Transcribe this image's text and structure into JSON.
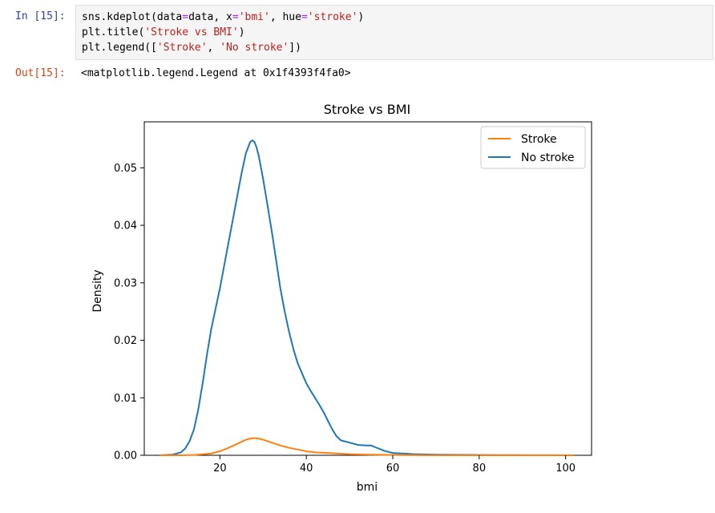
{
  "cell": {
    "in_prompt": "In [15]:",
    "out_prompt": "Out[15]:",
    "code": [
      [
        {
          "t": "sns.kdeplot(data"
        },
        {
          "t": "=",
          "c": "o"
        },
        {
          "t": "data, x"
        },
        {
          "t": "=",
          "c": "o"
        },
        {
          "t": "'bmi'",
          "c": "s"
        },
        {
          "t": ", hue"
        },
        {
          "t": "=",
          "c": "o"
        },
        {
          "t": "'stroke'",
          "c": "s"
        },
        {
          "t": ")"
        }
      ],
      [
        {
          "t": "plt.title("
        },
        {
          "t": "'Stroke vs BMI'",
          "c": "s"
        },
        {
          "t": ")"
        }
      ],
      [
        {
          "t": "plt.legend(["
        },
        {
          "t": "'Stroke'",
          "c": "s"
        },
        {
          "t": ", "
        },
        {
          "t": "'No stroke'",
          "c": "s"
        },
        {
          "t": "])"
        }
      ]
    ],
    "output": "<matplotlib.legend.Legend at 0x1f4393f4fa0>"
  },
  "chart_data": {
    "type": "line",
    "title": "Stroke vs BMI",
    "xlabel": "bmi",
    "ylabel": "Density",
    "xlim": [
      2.5,
      106
    ],
    "ylim": [
      0,
      0.058
    ],
    "xticks": [
      20,
      40,
      60,
      80,
      100
    ],
    "yticks": [
      0.0,
      0.01,
      0.02,
      0.03,
      0.04,
      0.05
    ],
    "ytick_labels": [
      "0.00",
      "0.01",
      "0.02",
      "0.03",
      "0.04",
      "0.05"
    ],
    "grid": false,
    "legend_position": "top-right",
    "series": [
      {
        "name": "Stroke",
        "color": "#ff7f0e",
        "x": [
          6,
          10,
          14,
          18,
          20,
          22,
          24,
          26,
          27,
          28,
          29,
          30,
          32,
          34,
          36,
          38,
          40,
          42,
          45,
          50,
          55,
          60,
          70,
          80,
          90,
          102
        ],
        "y": [
          0,
          0,
          5e-05,
          0.0003,
          0.0007,
          0.0013,
          0.002,
          0.0027,
          0.0029,
          0.003,
          0.0029,
          0.0027,
          0.0022,
          0.0017,
          0.0013,
          0.001,
          0.0007,
          0.0005,
          0.0004,
          0.0002,
          0.0001,
          5e-05,
          0,
          0,
          0,
          0
        ]
      },
      {
        "name": "No stroke",
        "color": "#1f77b4",
        "x": [
          6,
          9,
          11,
          12,
          13,
          14,
          15,
          16,
          17,
          18,
          20,
          22,
          24,
          25,
          26,
          27,
          27.5,
          28,
          28.5,
          29,
          30,
          31,
          32,
          33,
          34,
          35,
          36,
          37,
          38,
          40,
          41,
          42,
          43,
          44,
          45,
          46,
          47,
          48,
          50,
          52,
          54,
          55,
          56,
          58,
          60,
          65,
          70,
          80,
          90,
          102
        ],
        "y": [
          0,
          0.0001,
          0.0005,
          0.0012,
          0.0025,
          0.0045,
          0.008,
          0.0125,
          0.0175,
          0.022,
          0.029,
          0.037,
          0.045,
          0.049,
          0.0525,
          0.0545,
          0.0548,
          0.0545,
          0.0535,
          0.052,
          0.048,
          0.0435,
          0.039,
          0.034,
          0.029,
          0.025,
          0.0215,
          0.0185,
          0.016,
          0.0125,
          0.0112,
          0.01,
          0.0088,
          0.0075,
          0.006,
          0.0045,
          0.0033,
          0.0026,
          0.0022,
          0.0018,
          0.0017,
          0.0017,
          0.0014,
          0.0008,
          0.0004,
          0.0002,
          0.0001,
          5e-05,
          2e-05,
          0
        ]
      }
    ]
  }
}
